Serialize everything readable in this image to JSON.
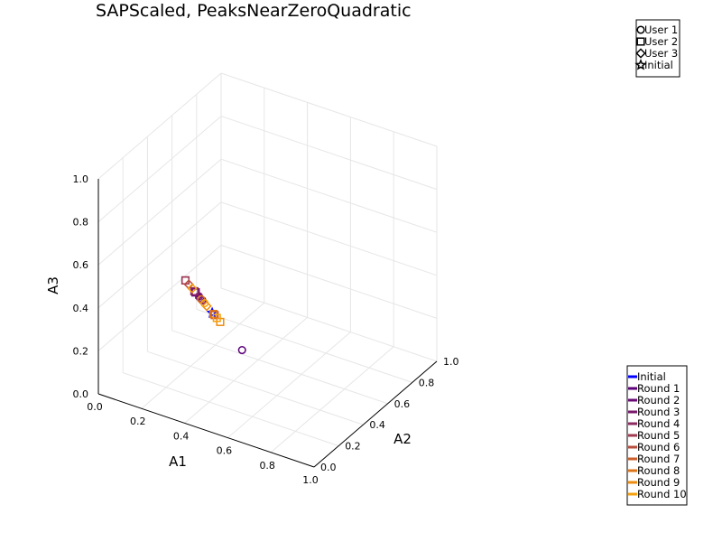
{
  "chart_data": {
    "type": "scatter3d",
    "title": "SAPScaled, PeaksNearZeroQuadratic",
    "axes": {
      "x": {
        "label": "A1",
        "range": [
          0,
          1
        ],
        "ticks": [
          "0.0",
          "0.2",
          "0.4",
          "0.6",
          "0.8",
          "1.0"
        ]
      },
      "y": {
        "label": "A2",
        "range": [
          0,
          1
        ],
        "ticks": [
          "0.0",
          "0.2",
          "0.4",
          "0.6",
          "0.8",
          "1.0"
        ]
      },
      "z": {
        "label": "A3",
        "range": [
          0,
          1
        ],
        "ticks": [
          "0.0",
          "0.2",
          "0.4",
          "0.6",
          "0.8",
          "1.0"
        ]
      }
    },
    "grid": true,
    "marker_legend": {
      "placement": "top-right",
      "entries": [
        {
          "label": "User 1",
          "marker": "circle"
        },
        {
          "label": "User 2",
          "marker": "square"
        },
        {
          "label": "User 3",
          "marker": "diamond"
        },
        {
          "label": "Initial",
          "marker": "star"
        }
      ]
    },
    "color_legend": {
      "placement": "bottom-right",
      "entries": [
        {
          "label": "Initial",
          "color": "#0000ff"
        },
        {
          "label": "Round 1",
          "color": "#5c007a"
        },
        {
          "label": "Round 2",
          "color": "#6a0a74"
        },
        {
          "label": "Round 3",
          "color": "#7a1a6c"
        },
        {
          "label": "Round 4",
          "color": "#8c2a62"
        },
        {
          "label": "Round 5",
          "color": "#a03a52"
        },
        {
          "label": "Round 6",
          "color": "#b84c3e"
        },
        {
          "label": "Round 7",
          "color": "#cc5e2a"
        },
        {
          "label": "Round 8",
          "color": "#de741a"
        },
        {
          "label": "Round 9",
          "color": "#ee8c10"
        },
        {
          "label": "Round 10",
          "color": "#f5a00c"
        }
      ]
    },
    "points": [
      {
        "round": "Initial",
        "user": "Initial",
        "x": 0.34,
        "y": 0.33,
        "z": 0.33
      },
      {
        "round": "Round 1",
        "user": "User 1",
        "x": 0.45,
        "y": 0.38,
        "z": 0.17
      },
      {
        "round": "Round 1",
        "user": "User 2",
        "x": 0.28,
        "y": 0.3,
        "z": 0.42
      },
      {
        "round": "Round 1",
        "user": "User 3",
        "x": 0.3,
        "y": 0.3,
        "z": 0.4
      },
      {
        "round": "Round 2",
        "user": "User 1",
        "x": 0.3,
        "y": 0.32,
        "z": 0.38
      },
      {
        "round": "Round 2",
        "user": "User 2",
        "x": 0.28,
        "y": 0.3,
        "z": 0.42
      },
      {
        "round": "Round 3",
        "user": "User 1",
        "x": 0.29,
        "y": 0.31,
        "z": 0.4
      },
      {
        "round": "Round 3",
        "user": "User 2",
        "x": 0.25,
        "y": 0.27,
        "z": 0.48
      },
      {
        "round": "Round 4",
        "user": "User 2",
        "x": 0.28,
        "y": 0.29,
        "z": 0.43
      },
      {
        "round": "Round 5",
        "user": "User 2",
        "x": 0.25,
        "y": 0.27,
        "z": 0.48
      },
      {
        "round": "Round 6",
        "user": "User 3",
        "x": 0.26,
        "y": 0.28,
        "z": 0.46
      },
      {
        "round": "Round 7",
        "user": "User 2",
        "x": 0.34,
        "y": 0.35,
        "z": 0.31
      },
      {
        "round": "Round 8",
        "user": "User 1",
        "x": 0.3,
        "y": 0.31,
        "z": 0.39
      },
      {
        "round": "Round 8",
        "user": "User 2",
        "x": 0.34,
        "y": 0.34,
        "z": 0.32
      },
      {
        "round": "Round 9",
        "user": "User 3",
        "x": 0.32,
        "y": 0.32,
        "z": 0.36
      },
      {
        "round": "Round 9",
        "user": "User 2",
        "x": 0.36,
        "y": 0.36,
        "z": 0.28
      },
      {
        "round": "Round 10",
        "user": "User 2",
        "x": 0.35,
        "y": 0.35,
        "z": 0.3
      },
      {
        "round": "Round 10",
        "user": "User 3",
        "x": 0.27,
        "y": 0.29,
        "z": 0.44
      },
      {
        "round": "Round 10",
        "user": "User 1",
        "x": 0.31,
        "y": 0.32,
        "z": 0.37
      }
    ]
  }
}
